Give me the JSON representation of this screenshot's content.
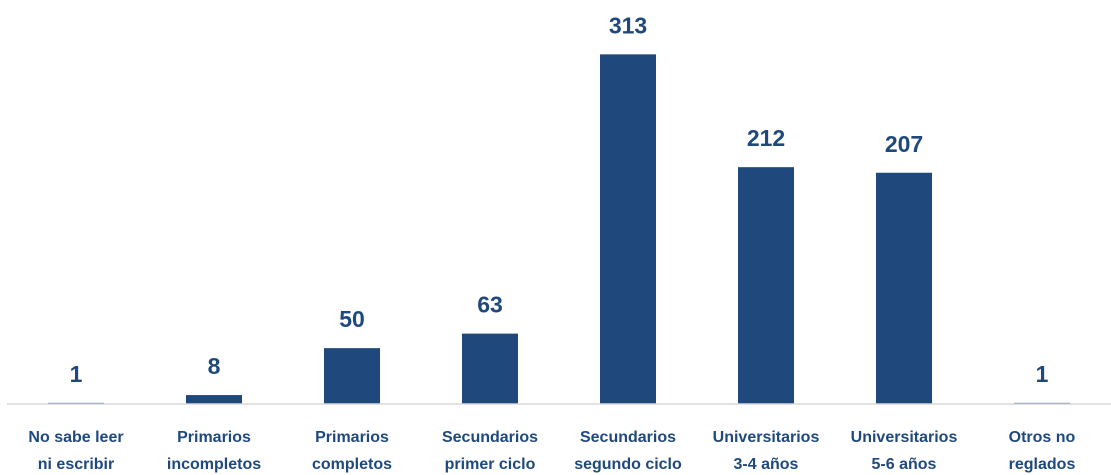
{
  "chart_data": {
    "type": "bar",
    "categories": [
      [
        "No sabe leer",
        "ni escribir"
      ],
      [
        "Primarios",
        "incompletos"
      ],
      [
        "Primarios",
        "completos"
      ],
      [
        "Secundarios",
        "primer ciclo"
      ],
      [
        "Secundarios",
        "segundo ciclo"
      ],
      [
        "Universitarios",
        "3-4 años"
      ],
      [
        "Universitarios",
        "5-6 años"
      ],
      [
        "Otros no",
        "reglados"
      ]
    ],
    "values": [
      1,
      8,
      50,
      63,
      313,
      212,
      207,
      1
    ],
    "color": "#1f497d",
    "ylim": [
      0,
      350
    ]
  }
}
